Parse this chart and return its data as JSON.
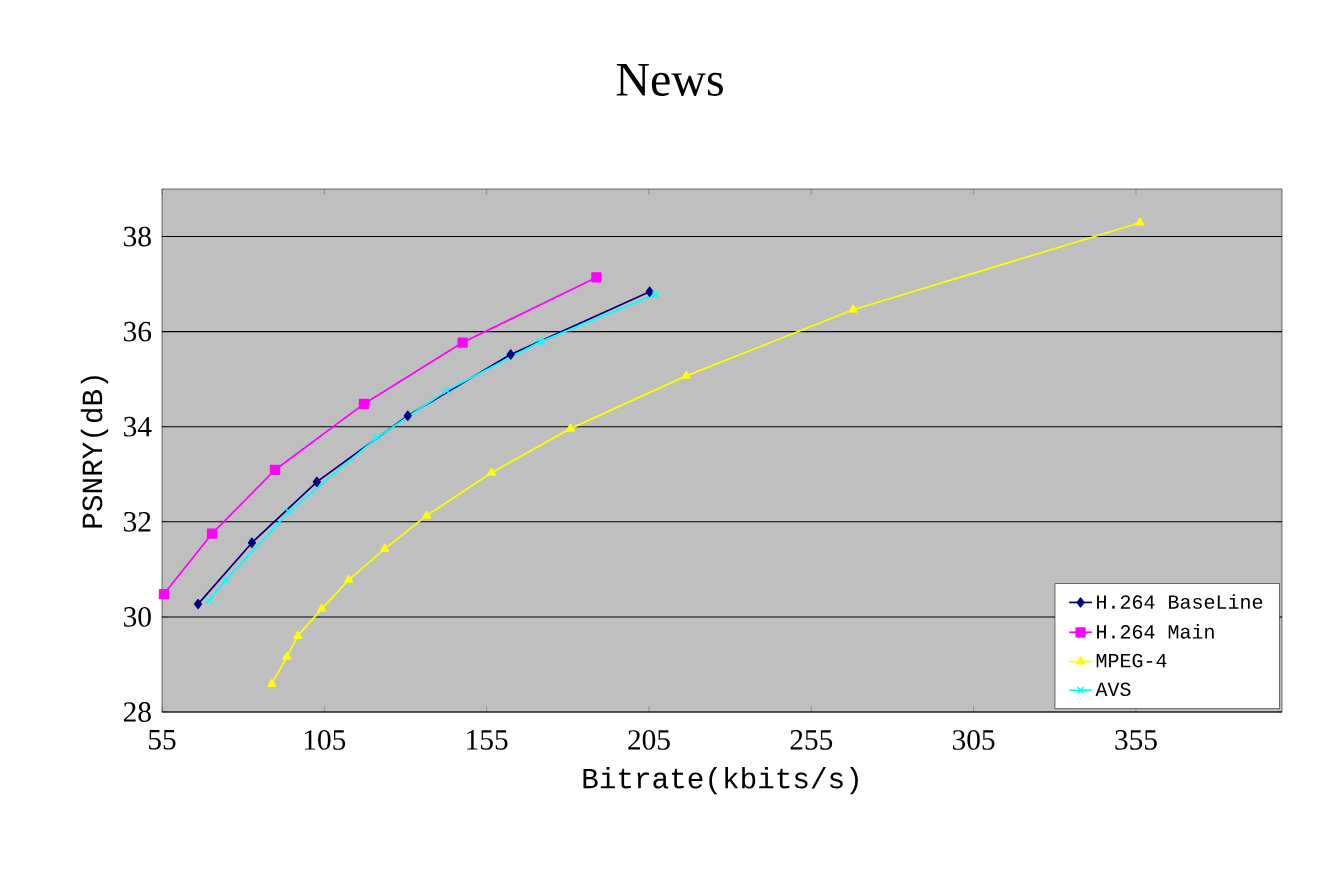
{
  "chart_data": {
    "type": "line",
    "title": "News",
    "xlabel": "Bitrate(kbits/s)",
    "ylabel": "PSNRY(dB)",
    "xlim": [
      55,
      400
    ],
    "xticks": [
      55,
      105,
      155,
      205,
      255,
      305,
      355
    ],
    "ylim": [
      28,
      39
    ],
    "yticks": [
      28,
      30,
      32,
      34,
      36,
      38
    ],
    "grid": "y",
    "legend": "bottom right",
    "line_style": "solid",
    "series": [
      {
        "name": "H.264 BaseLine",
        "color": "#000080",
        "marker": "diamond",
        "x": [
          66.1,
          82.7,
          102.7,
          130.7,
          162.4,
          205.2
        ],
        "values": [
          30.27,
          31.56,
          32.84,
          34.23,
          35.52,
          36.84
        ]
      },
      {
        "name": "H.264 Main",
        "color": "#ff00ff",
        "marker": "square",
        "x": [
          55.6,
          70.4,
          89.8,
          117.2,
          147.6,
          188.8
        ],
        "values": [
          30.48,
          31.75,
          33.09,
          34.48,
          35.77,
          37.14
        ]
      },
      {
        "name": "MPEG-4",
        "color": "#ffff00",
        "marker": "triangle",
        "x": [
          88.8,
          93.5,
          96.8,
          104.2,
          112.5,
          123.6,
          136.5,
          156.5,
          180.8,
          216.5,
          267.9,
          356.2
        ],
        "values": [
          28.59,
          29.16,
          29.6,
          30.17,
          30.78,
          31.43,
          32.13,
          33.03,
          33.96,
          35.07,
          36.46,
          38.29
        ]
      },
      {
        "name": "AVS",
        "color": "#00ffff",
        "marker": "cross",
        "x": [
          69.5,
          74.7,
          94.1,
          121.2,
          142.7,
          171.6,
          207.0
        ],
        "values": [
          30.34,
          30.78,
          32.21,
          33.77,
          34.76,
          35.79,
          36.78
        ]
      }
    ]
  }
}
